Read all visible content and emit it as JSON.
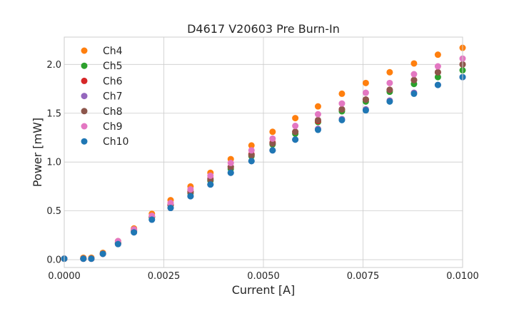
{
  "chart_data": {
    "type": "scatter",
    "title": "D4617 V20603 Pre Burn-In",
    "xlabel": "Current [A]",
    "ylabel": "Power [mW]",
    "xlim": [
      0.0,
      0.01
    ],
    "ylim": [
      -0.08,
      2.28
    ],
    "xticks": [
      "0.0000",
      "0.0025",
      "0.0050",
      "0.0075",
      "0.0100"
    ],
    "yticks": [
      "0.0",
      "0.5",
      "1.0",
      "1.5",
      "2.0"
    ],
    "xtick_values": [
      0.0,
      0.0025,
      0.005,
      0.0075,
      0.01
    ],
    "ytick_values": [
      0.0,
      0.5,
      1.0,
      1.5,
      2.0
    ],
    "grid": true,
    "legend_position": "top-left",
    "x": [
      0.0,
      0.00048,
      0.00068,
      0.00097,
      0.00135,
      0.00175,
      0.0022,
      0.00267,
      0.00317,
      0.00367,
      0.00418,
      0.0047,
      0.00523,
      0.0058,
      0.00637,
      0.00697,
      0.00757,
      0.00817,
      0.00878,
      0.00938,
      0.01
    ],
    "series": [
      {
        "name": "Ch4",
        "color": "#ff7f0e",
        "values": [
          0.01,
          0.02,
          0.02,
          0.07,
          0.19,
          0.32,
          0.47,
          0.61,
          0.75,
          0.89,
          1.03,
          1.17,
          1.31,
          1.45,
          1.57,
          1.7,
          1.81,
          1.92,
          2.01,
          2.1,
          2.17
        ]
      },
      {
        "name": "Ch5",
        "color": "#2ca02c",
        "values": [
          0.01,
          0.01,
          0.01,
          0.06,
          0.17,
          0.29,
          0.43,
          0.56,
          0.68,
          0.81,
          0.93,
          1.06,
          1.18,
          1.29,
          1.41,
          1.52,
          1.62,
          1.72,
          1.8,
          1.87,
          1.94
        ]
      },
      {
        "name": "Ch6",
        "color": "#d62728",
        "values": [
          0.01,
          0.01,
          0.01,
          0.06,
          0.17,
          0.3,
          0.44,
          0.56,
          0.7,
          0.83,
          0.95,
          1.08,
          1.2,
          1.31,
          1.42,
          1.54,
          1.64,
          1.74,
          1.84,
          1.92,
          2.0
        ]
      },
      {
        "name": "Ch7",
        "color": "#9467bd",
        "values": [
          0.01,
          0.01,
          0.01,
          0.06,
          0.16,
          0.28,
          0.41,
          0.53,
          0.65,
          0.77,
          0.89,
          1.01,
          1.12,
          1.23,
          1.34,
          1.44,
          1.54,
          1.63,
          1.71,
          1.79,
          1.87
        ]
      },
      {
        "name": "Ch8",
        "color": "#8c564b",
        "values": [
          0.01,
          0.01,
          0.01,
          0.06,
          0.17,
          0.3,
          0.44,
          0.56,
          0.69,
          0.82,
          0.95,
          1.07,
          1.19,
          1.31,
          1.43,
          1.54,
          1.64,
          1.74,
          1.84,
          1.92,
          2.0
        ]
      },
      {
        "name": "Ch9",
        "color": "#e377c2",
        "values": [
          0.01,
          0.01,
          0.01,
          0.06,
          0.19,
          0.31,
          0.45,
          0.58,
          0.72,
          0.86,
          0.99,
          1.12,
          1.24,
          1.37,
          1.49,
          1.6,
          1.71,
          1.81,
          1.9,
          1.98,
          2.06
        ]
      },
      {
        "name": "Ch10",
        "color": "#1f77b4",
        "values": [
          0.01,
          0.01,
          0.01,
          0.06,
          0.16,
          0.28,
          0.41,
          0.53,
          0.65,
          0.77,
          0.89,
          1.01,
          1.12,
          1.23,
          1.33,
          1.43,
          1.53,
          1.62,
          1.7,
          1.79,
          1.87
        ]
      }
    ]
  }
}
